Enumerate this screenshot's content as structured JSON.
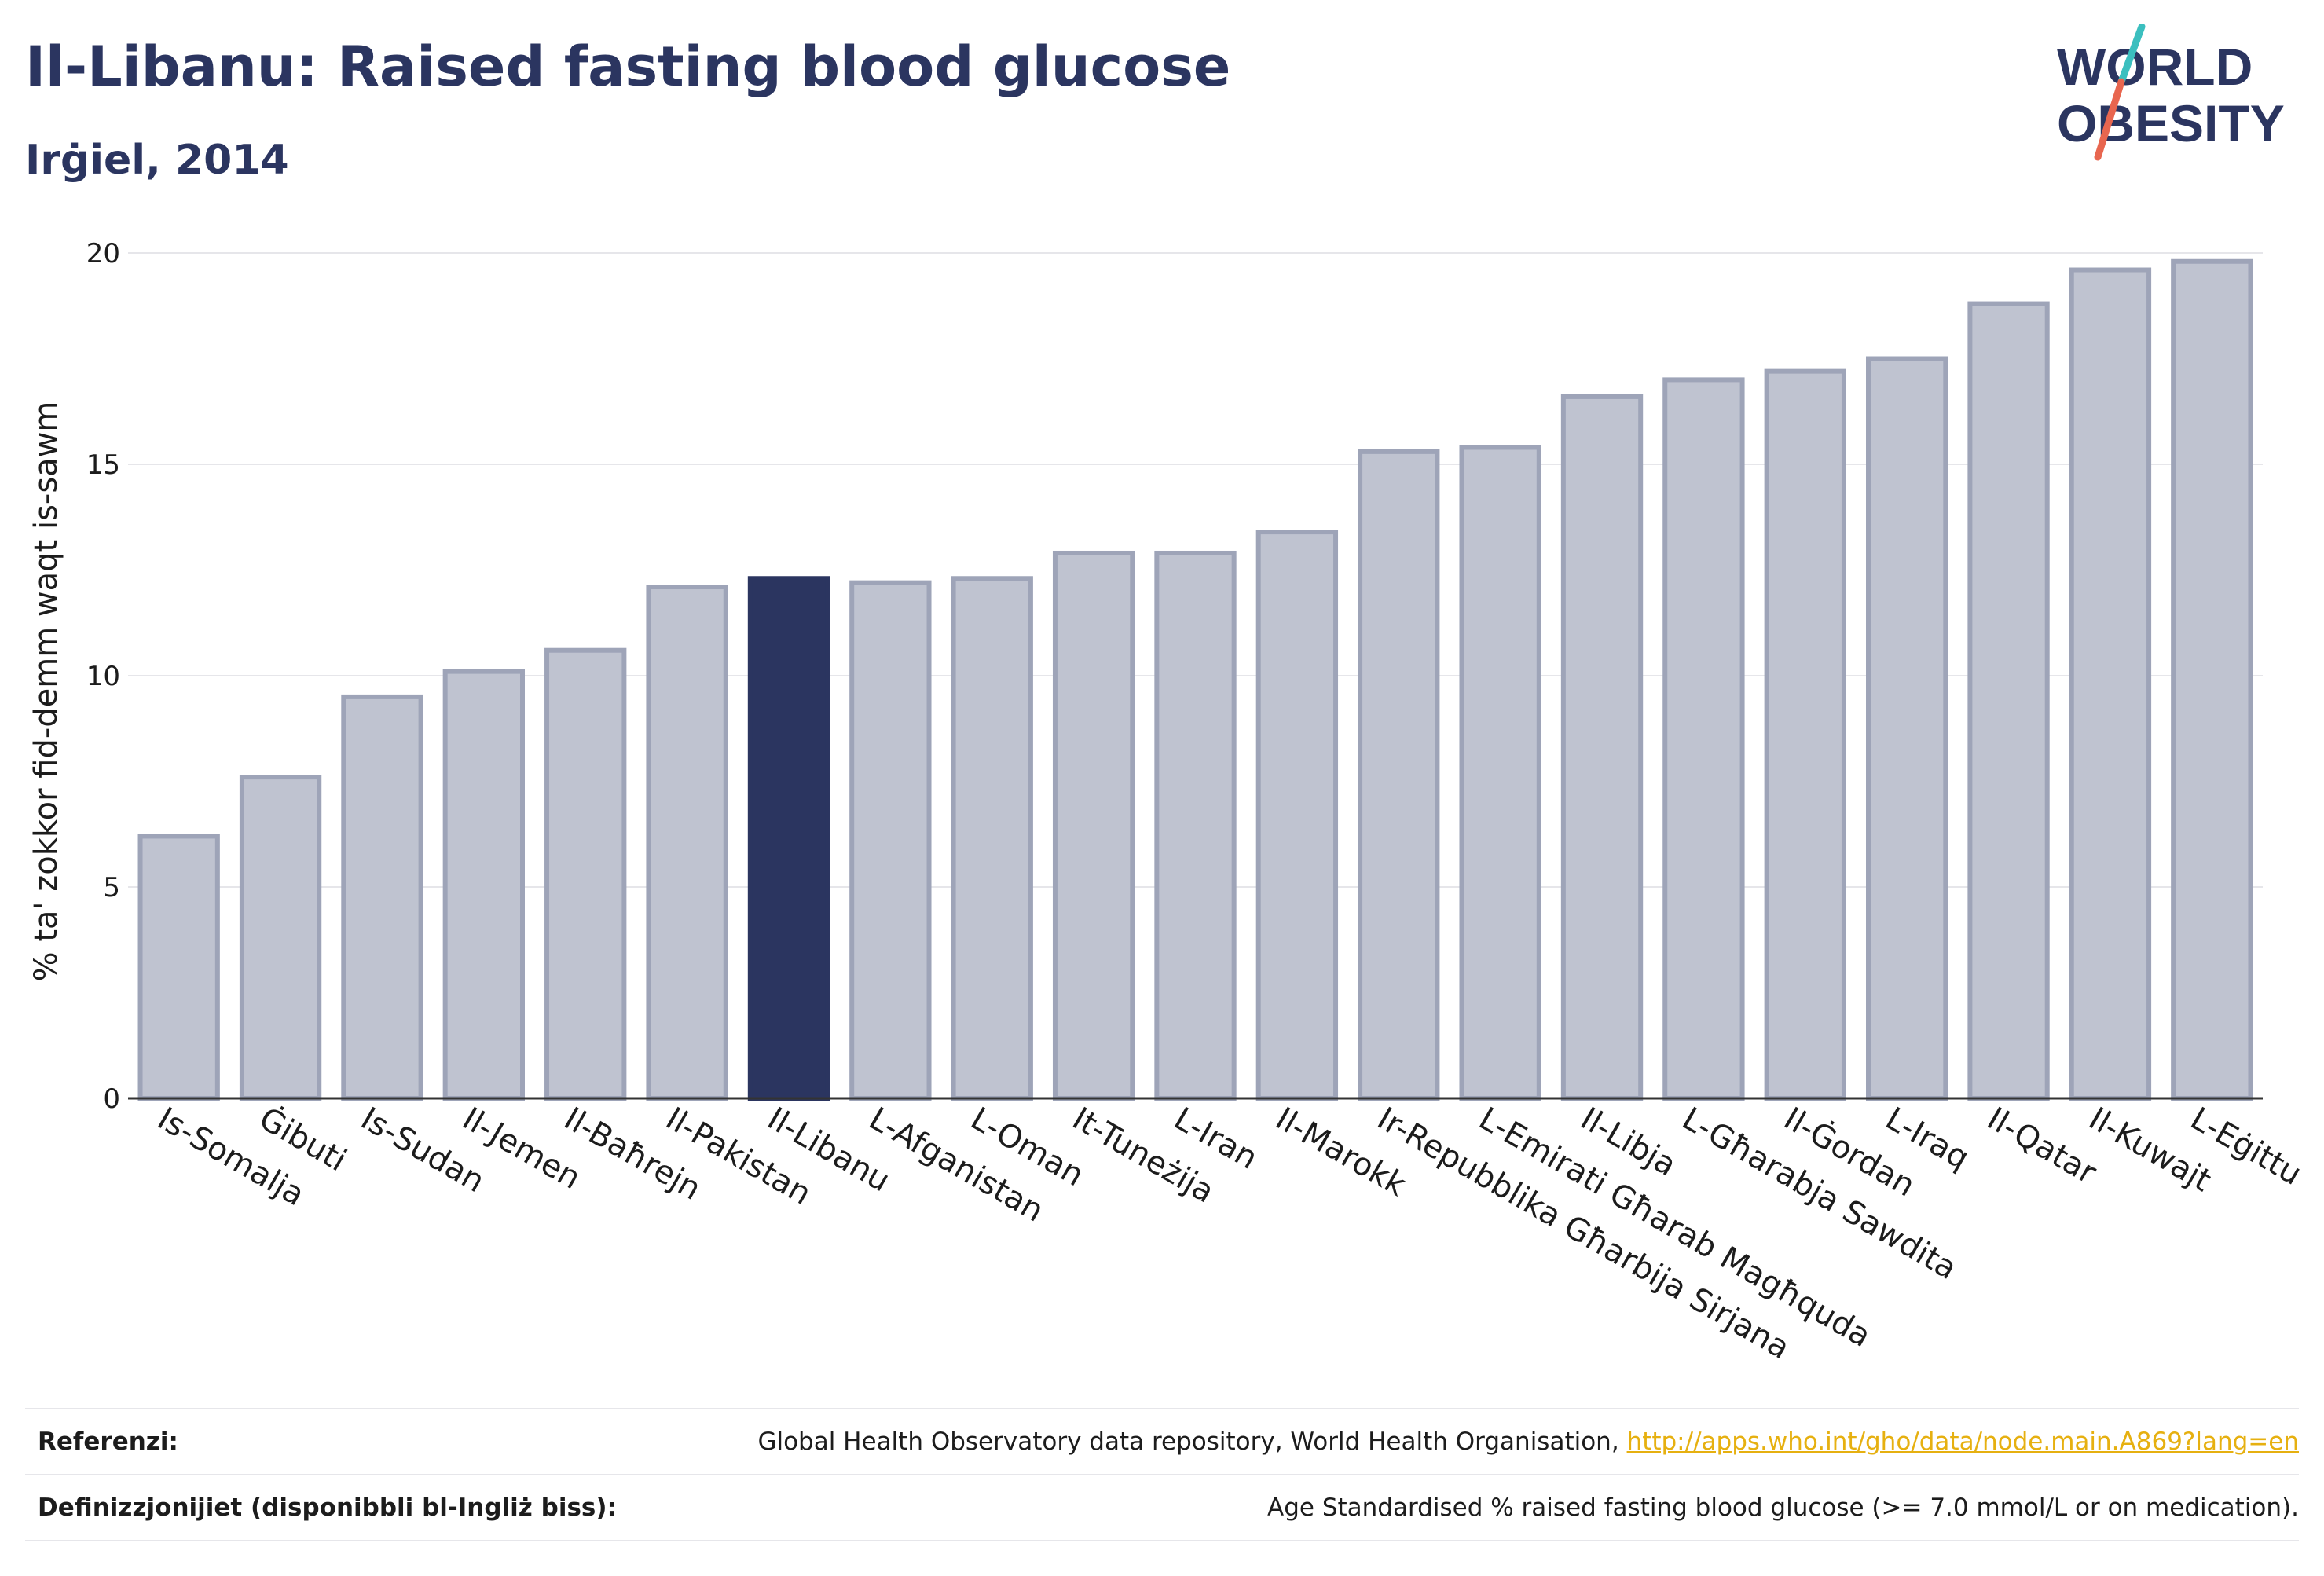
{
  "header": {
    "title": "Il-Libanu: Raised fasting blood glucose",
    "subtitle": "Irġiel, 2014"
  },
  "logo": {
    "line1": "WORLD",
    "line2": "OBESITY",
    "colors": {
      "text": "#2b3560",
      "slash_teal": "#3bbfbf",
      "slash_red": "#e8664f"
    }
  },
  "colors": {
    "bar": "#bfc3d0",
    "bar_border": "#9ea4b8",
    "highlight": "#2b3560",
    "grid": "#e6e6ea",
    "axis": "#333333"
  },
  "chart_data": {
    "type": "bar",
    "title": "",
    "xlabel": "",
    "ylabel": "% ta' zokkor fid-demm waqt is-sawm",
    "ylim": [
      0,
      20
    ],
    "yticks": [
      0,
      5,
      10,
      15,
      20
    ],
    "grid": true,
    "highlight": "Il-Libanu",
    "categories": [
      "Is-Somalja",
      "Ġibuti",
      "Is-Sudan",
      "Il-Jemen",
      "Il-Baħrejn",
      "Il-Pakistan",
      "Il-Libanu",
      "L-Afganistan",
      "L-Oman",
      "It-Tuneżija",
      "L-Iran",
      "Il-Marokk",
      "Ir-Repubblika Għarbija Sirjana",
      "L-Emirati Għarab Magħquda",
      "Il-Libja",
      "L-Għarabja Sawdita",
      "Il-Ġordan",
      "L-Iraq",
      "Il-Qatar",
      "Il-Kuwajt",
      "L-Eġittu"
    ],
    "values": [
      6.2,
      7.6,
      9.5,
      10.1,
      10.6,
      12.1,
      12.3,
      12.2,
      12.3,
      12.9,
      12.9,
      13.4,
      15.3,
      15.4,
      16.6,
      17.0,
      17.2,
      17.5,
      18.8,
      19.6,
      19.8
    ]
  },
  "footer": {
    "references_label": "Referenzi:",
    "references_text": "Global Health Observatory data repository, World Health Organisation, ",
    "references_link": "http://apps.who.int/gho/data/node.main.A869?lang=en",
    "definitions_label": "Definizzjonijiet (disponibbli bl-Ingliż biss):",
    "definitions_text": "Age Standardised % raised fasting blood glucose (>= 7.0 mmol/L or on medication)."
  }
}
